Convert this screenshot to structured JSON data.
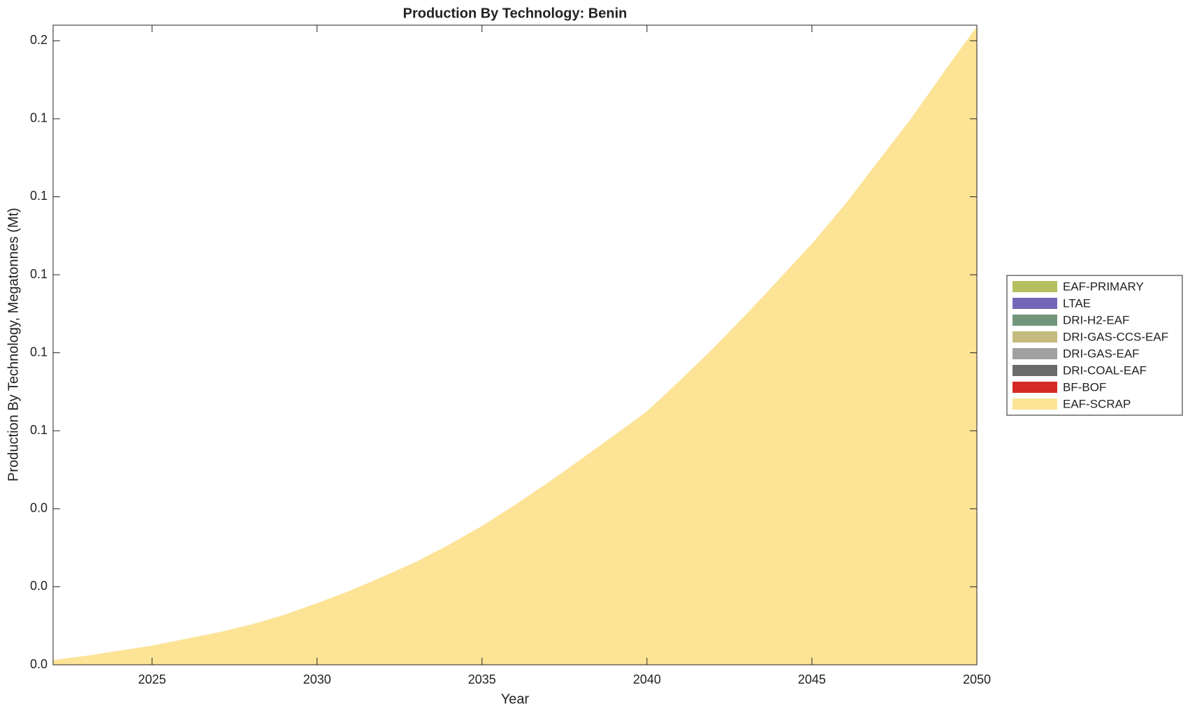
{
  "chart_data": {
    "type": "area",
    "stacked": true,
    "title": "Production By Technology: Benin",
    "xlabel": "Year",
    "ylabel": "Production By Technology, Megatonnes (Mt)",
    "x": [
      2022,
      2023,
      2024,
      2025,
      2026,
      2027,
      2028,
      2029,
      2030,
      2031,
      2032,
      2033,
      2034,
      2035,
      2036,
      2037,
      2038,
      2039,
      2040,
      2041,
      2042,
      2043,
      2044,
      2045,
      2046,
      2047,
      2048,
      2049,
      2050
    ],
    "xlim": [
      2022,
      2050
    ],
    "xticks": [
      2025,
      2030,
      2035,
      2040,
      2045,
      2050
    ],
    "ylim": [
      0,
      0.164
    ],
    "yticks": [
      {
        "value": 0,
        "label": "0.0"
      },
      {
        "value": 0.02,
        "label": "0.0"
      },
      {
        "value": 0.04,
        "label": "0.0"
      },
      {
        "value": 0.06,
        "label": "0.1"
      },
      {
        "value": 0.08,
        "label": "0.1"
      },
      {
        "value": 0.1,
        "label": "0.1"
      },
      {
        "value": 0.12,
        "label": "0.1"
      },
      {
        "value": 0.14,
        "label": "0.1"
      },
      {
        "value": 0.16,
        "label": "0.2"
      }
    ],
    "legend": "right",
    "series": [
      {
        "name": "EAF-PRIMARY",
        "color": "#b5bf5f",
        "values": [
          0,
          0,
          0,
          0,
          0,
          0,
          0,
          0,
          0,
          0,
          0,
          0,
          0,
          0,
          0,
          0,
          0,
          0,
          0,
          0,
          0,
          0,
          0,
          0,
          0,
          0,
          0,
          0,
          0
        ]
      },
      {
        "name": "LTAE",
        "color": "#7467b8",
        "values": [
          0,
          0,
          0,
          0,
          0,
          0,
          0,
          0,
          0,
          0,
          0,
          0,
          0,
          0,
          0,
          0,
          0,
          0,
          0,
          0,
          0,
          0,
          0,
          0,
          0,
          0,
          0,
          0,
          0
        ]
      },
      {
        "name": "DRI-H2-EAF",
        "color": "#72967a",
        "values": [
          0,
          0,
          0,
          0,
          0,
          0,
          0,
          0,
          0,
          0,
          0,
          0,
          0,
          0,
          0,
          0,
          0,
          0,
          0,
          0,
          0,
          0,
          0,
          0,
          0,
          0,
          0,
          0,
          0
        ]
      },
      {
        "name": "DRI-GAS-CCS-EAF",
        "color": "#c5bb7e",
        "values": [
          0,
          0,
          0,
          0,
          0,
          0,
          0,
          0,
          0,
          0,
          0,
          0,
          0,
          0,
          0,
          0,
          0,
          0,
          0,
          0,
          0,
          0,
          0,
          0,
          0,
          0,
          0,
          0,
          0
        ]
      },
      {
        "name": "DRI-GAS-EAF",
        "color": "#a0a0a0",
        "values": [
          0,
          0,
          0,
          0,
          0,
          0,
          0,
          0,
          0,
          0,
          0,
          0,
          0,
          0,
          0,
          0,
          0,
          0,
          0,
          0,
          0,
          0,
          0,
          0,
          0,
          0,
          0,
          0,
          0
        ]
      },
      {
        "name": "DRI-COAL-EAF",
        "color": "#6a6a6a",
        "values": [
          0,
          0,
          0,
          0,
          0,
          0,
          0,
          0,
          0,
          0,
          0,
          0,
          0,
          0,
          0,
          0,
          0,
          0,
          0,
          0,
          0,
          0,
          0,
          0,
          0,
          0,
          0,
          0,
          0
        ]
      },
      {
        "name": "BF-BOF",
        "color": "#d42a25",
        "values": [
          0,
          0,
          0,
          0,
          0,
          0,
          0,
          0,
          0,
          0,
          0,
          0,
          0,
          0,
          0,
          0,
          0,
          0,
          0,
          0,
          0,
          0,
          0,
          0,
          0,
          0,
          0,
          0,
          0
        ]
      },
      {
        "name": "EAF-SCRAP",
        "color": "#fde396",
        "values": [
          0.0012,
          0.0023,
          0.0036,
          0.0049,
          0.0066,
          0.0083,
          0.0103,
          0.0128,
          0.0158,
          0.019,
          0.0226,
          0.0264,
          0.0308,
          0.0356,
          0.041,
          0.0467,
          0.0527,
          0.0588,
          0.065,
          0.0729,
          0.0811,
          0.0898,
          0.0988,
          0.108,
          0.118,
          0.129,
          0.14,
          0.152,
          0.1637
        ]
      }
    ]
  }
}
